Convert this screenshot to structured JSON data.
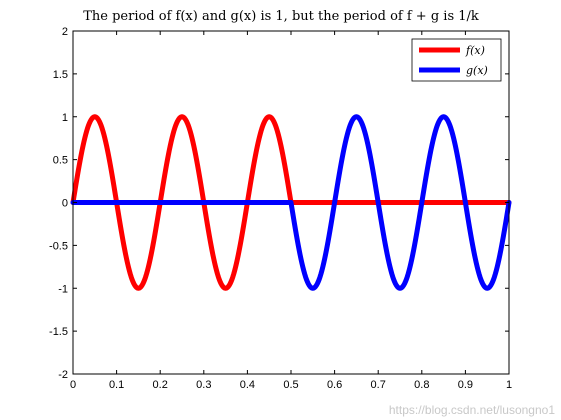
{
  "chart_data": {
    "type": "line",
    "title": "The period of f(x) and g(x) is 1, but the period of f + g is 1/k",
    "xlabel": "",
    "ylabel": "",
    "xlim": [
      0,
      1
    ],
    "ylim": [
      -2,
      2
    ],
    "x_ticks": [
      "0",
      "0.1",
      "0.2",
      "0.3",
      "0.4",
      "0.5",
      "0.6",
      "0.7",
      "0.8",
      "0.9",
      "1"
    ],
    "y_ticks": [
      "2",
      "1.5",
      "1",
      "0.5",
      "0",
      "-0.5",
      "-1",
      "-1.5",
      "-2"
    ],
    "grid": false,
    "legend_position": "top-right",
    "series": [
      {
        "name": "f(x)",
        "color": "#ff0000",
        "x": [
          0,
          0.05,
          0.1,
          0.15,
          0.2,
          0.25,
          0.3,
          0.35,
          0.4,
          0.45,
          0.5,
          0.5,
          1.0
        ],
        "y": [
          0,
          1,
          0,
          -1,
          0,
          1,
          0,
          -1,
          0,
          1,
          0,
          0,
          0
        ]
      },
      {
        "name": "g(x)",
        "color": "#0000ff",
        "x": [
          0,
          0.5,
          0.5,
          0.55,
          0.6,
          0.65,
          0.7,
          0.75,
          0.8,
          0.85,
          0.9,
          0.95,
          1.0
        ],
        "y": [
          0,
          0,
          0,
          -1,
          0,
          1,
          0,
          -1,
          0,
          1,
          0,
          -1,
          0
        ]
      }
    ]
  },
  "watermark": "https://blog.csdn.net/lusongno1"
}
